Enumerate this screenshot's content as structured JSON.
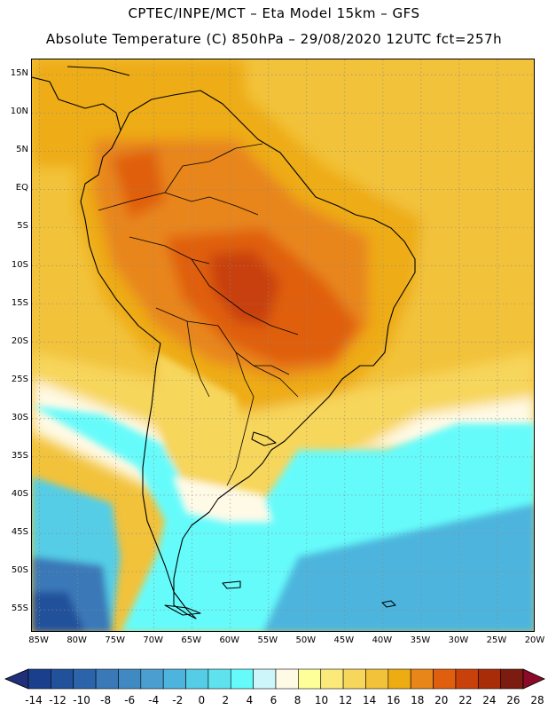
{
  "header": {
    "line1": "CPTEC/INPE/MCT –  Eta Model 15km – GFS",
    "line2": "Absolute Temperature (C) 850hPa – 29/08/2020 12UTC fct=257h"
  },
  "map": {
    "region": "South America",
    "variable": "Absolute Temperature (C) 850hPa",
    "lat_range": [
      -58,
      17
    ],
    "lon_range": [
      -86,
      -20
    ],
    "lat_labels": [
      "15N",
      "10N",
      "5N",
      "EQ",
      "5S",
      "10S",
      "15S",
      "20S",
      "25S",
      "30S",
      "35S",
      "40S",
      "45S",
      "50S",
      "55S"
    ],
    "lat_values": [
      15,
      10,
      5,
      0,
      -5,
      -10,
      -15,
      -20,
      -25,
      -30,
      -35,
      -40,
      -45,
      -50,
      -55
    ],
    "lon_labels": [
      "85W",
      "80W",
      "75W",
      "70W",
      "65W",
      "60W",
      "55W",
      "50W",
      "45W",
      "40W",
      "35W",
      "30W",
      "25W",
      "20W"
    ],
    "lon_values": [
      -85,
      -80,
      -75,
      -70,
      -65,
      -60,
      -55,
      -50,
      -45,
      -40,
      -35,
      -30,
      -25,
      -20
    ]
  },
  "colorbar": {
    "labels": [
      "-14",
      "-12",
      "-10",
      "-8",
      "-6",
      "-4",
      "-2",
      "0",
      "2",
      "4",
      "6",
      "8",
      "10",
      "12",
      "14",
      "16",
      "18",
      "20",
      "22",
      "24",
      "26",
      "28"
    ],
    "colors": [
      "#1a3f8c",
      "#22519b",
      "#2b64aa",
      "#3a78b8",
      "#4189c2",
      "#4a9fd0",
      "#4db5dd",
      "#55cde6",
      "#5ee3ee",
      "#66fbfb",
      "#cdf6fb",
      "#fffae6",
      "#ffff99",
      "#fbe97a",
      "#f7d65c",
      "#f2c23a",
      "#eeac13",
      "#e8861a",
      "#e05f0f",
      "#c8410a",
      "#a82c08",
      "#7c1b10"
    ],
    "under_color": "#1f2f7a",
    "over_color": "#8a0a28"
  }
}
